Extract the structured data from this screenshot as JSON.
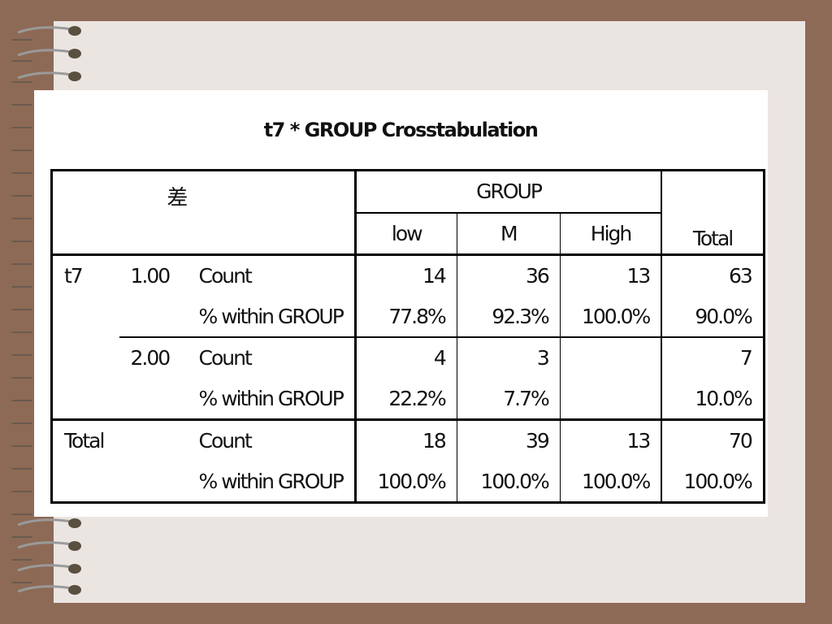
{
  "title": "t7 * GROUP Crosstabulation",
  "corner_label": "差",
  "group_header": "GROUP",
  "columns": [
    "low",
    "M",
    "High",
    "Total"
  ],
  "rows": [
    {
      "var": "t7",
      "level": "1.00",
      "stat": "Count",
      "values": [
        "14",
        "36",
        "13",
        "63"
      ]
    },
    {
      "var": "",
      "level": "",
      "stat": "% within GROUP",
      "values": [
        "77.8%",
        "92.3%",
        "100.0%",
        "90.0%"
      ]
    },
    {
      "var": "",
      "level": "2.00",
      "stat": "Count",
      "values": [
        "4",
        "3",
        "",
        "7"
      ]
    },
    {
      "var": "",
      "level": "",
      "stat": "% within GROUP",
      "values": [
        "22.2%",
        "7.7%",
        "",
        "10.0%"
      ]
    },
    {
      "var": "Total",
      "level": "",
      "stat": "Count",
      "values": [
        "18",
        "39",
        "13",
        "70"
      ]
    },
    {
      "var": "",
      "level": "",
      "stat": "% within GROUP",
      "values": [
        "100.0%",
        "100.0%",
        "100.0%",
        "100.0%"
      ]
    }
  ],
  "colors": {
    "frame": "#8d6a55",
    "paper": "#ebe5e2",
    "slide": "#ffffff"
  }
}
